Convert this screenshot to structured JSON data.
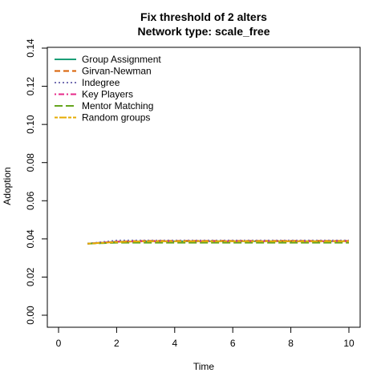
{
  "chart_data": {
    "type": "line",
    "title": "Fix threshold of 2 alters",
    "subtitle": "Network type: scale_free",
    "xlabel": "Time",
    "ylabel": "Adoption",
    "xlim": [
      0,
      10
    ],
    "ylim": [
      0,
      0.14
    ],
    "xticks": [
      0,
      2,
      4,
      6,
      8,
      10
    ],
    "yticks": [
      0,
      0.02,
      0.04,
      0.06,
      0.08,
      0.1,
      0.12,
      0.14
    ],
    "ytick_labels": [
      "0.00",
      "0.02",
      "0.04",
      "0.06",
      "0.08",
      "0.10",
      "0.12",
      "0.14"
    ],
    "legend_position": "top-left",
    "grid": false,
    "x": [
      1,
      2,
      3,
      4,
      5,
      6,
      7,
      8,
      9,
      10
    ],
    "series": [
      {
        "name": "Group Assignment",
        "color": "#1b9e77",
        "dash": "solid",
        "values": [
          0.0375,
          0.0385,
          0.0388,
          0.0388,
          0.0388,
          0.0388,
          0.0388,
          0.0388,
          0.0388,
          0.0388
        ]
      },
      {
        "name": "Girvan-Newman",
        "color": "#d95f02",
        "dash": "dashed",
        "values": [
          0.0375,
          0.0386,
          0.039,
          0.039,
          0.039,
          0.039,
          0.039,
          0.039,
          0.039,
          0.039
        ]
      },
      {
        "name": "Indegree",
        "color": "#7570b3",
        "dash": "dotted",
        "values": [
          0.0375,
          0.0392,
          0.0392,
          0.0392,
          0.0392,
          0.0392,
          0.0392,
          0.0392,
          0.0392,
          0.0392
        ]
      },
      {
        "name": "Key Players",
        "color": "#e7298a",
        "dash": "dotdash",
        "values": [
          0.0375,
          0.0385,
          0.0388,
          0.0388,
          0.0388,
          0.0388,
          0.0388,
          0.0388,
          0.0388,
          0.0388
        ]
      },
      {
        "name": "Mentor Matching",
        "color": "#66a61e",
        "dash": "longdash",
        "values": [
          0.0375,
          0.038,
          0.038,
          0.038,
          0.038,
          0.038,
          0.038,
          0.038,
          0.038,
          0.038
        ]
      },
      {
        "name": "Random groups",
        "color": "#e6ab02",
        "dash": "twodash",
        "values": [
          0.0375,
          0.0384,
          0.0388,
          0.0388,
          0.0388,
          0.0388,
          0.0388,
          0.0388,
          0.0388,
          0.0388
        ]
      }
    ]
  }
}
